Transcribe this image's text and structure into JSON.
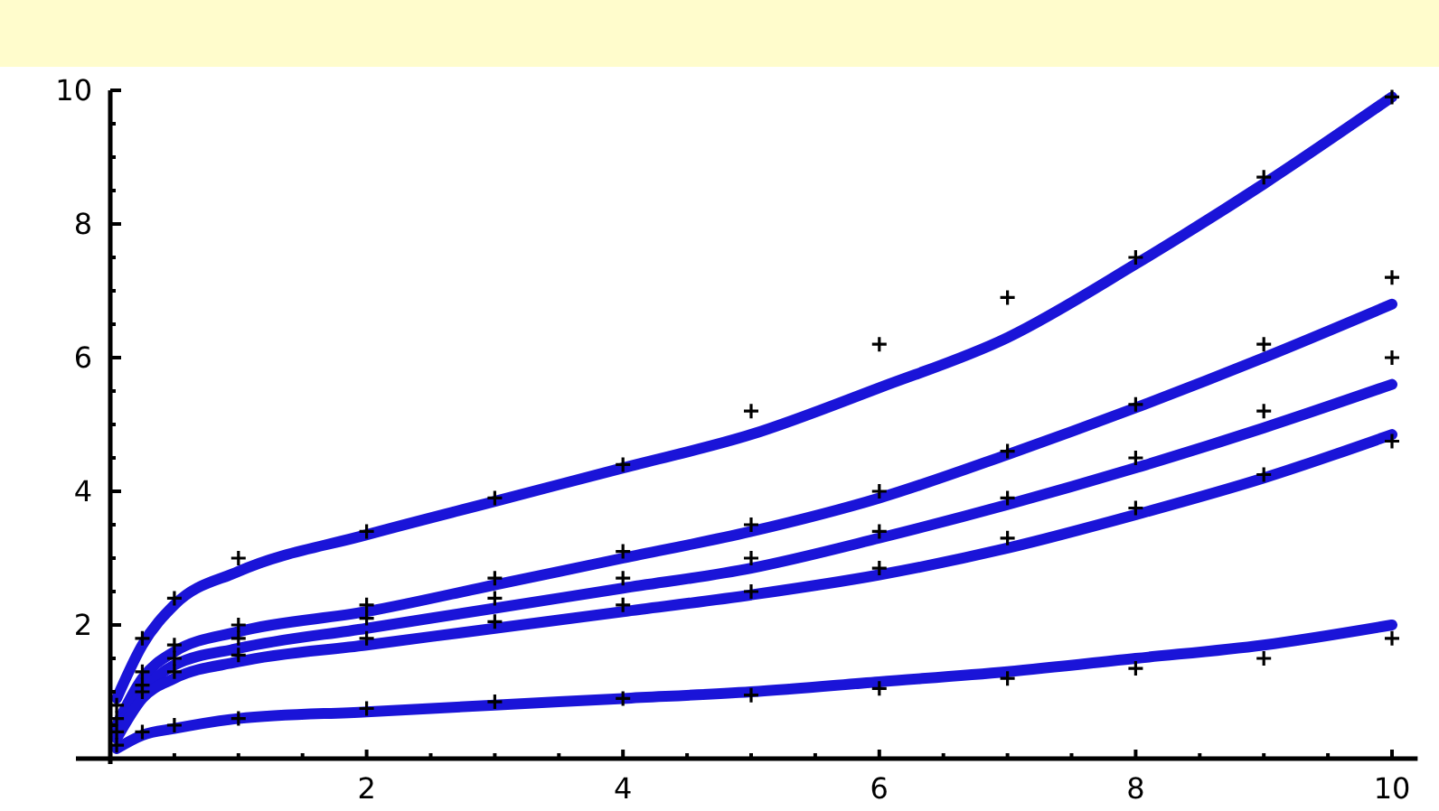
{
  "chart_data": {
    "type": "scatter",
    "xlim": [
      0,
      10.2
    ],
    "ylim": [
      0,
      10
    ],
    "xticks": [
      {
        "value": 0.5,
        "label": null
      },
      {
        "value": 1,
        "label": null
      },
      {
        "value": 1.5,
        "label": null
      },
      2,
      {
        "value": 2.5,
        "label": null
      },
      {
        "value": 3,
        "label": null
      },
      {
        "value": 3.5,
        "label": null
      },
      4,
      {
        "value": 4.5,
        "label": null
      },
      {
        "value": 5,
        "label": null
      },
      {
        "value": 5.5,
        "label": null
      },
      6,
      {
        "value": 6.5,
        "label": null
      },
      {
        "value": 7,
        "label": null
      },
      {
        "value": 7.5,
        "label": null
      },
      8,
      {
        "value": 8.5,
        "label": null
      },
      {
        "value": 9,
        "label": null
      },
      {
        "value": 9.5,
        "label": null
      },
      10
    ],
    "yticks": [
      {
        "value": 0.5,
        "label": null
      },
      {
        "value": 1,
        "label": null
      },
      {
        "value": 1.5,
        "label": null
      },
      2,
      {
        "value": 2.5,
        "label": null
      },
      {
        "value": 3,
        "label": null
      },
      {
        "value": 3.5,
        "label": null
      },
      4,
      {
        "value": 4.5,
        "label": null
      },
      {
        "value": 5,
        "label": null
      },
      {
        "value": 5.5,
        "label": null
      },
      6,
      {
        "value": 6.5,
        "label": null
      },
      {
        "value": 7,
        "label": null
      },
      {
        "value": 7.5,
        "label": null
      },
      8,
      {
        "value": 8.5,
        "label": null
      },
      {
        "value": 9,
        "label": null
      },
      {
        "value": 9.5,
        "label": null
      },
      10
    ],
    "x": [
      0.05,
      0.25,
      0.5,
      1,
      2,
      3,
      4,
      5,
      6,
      7,
      8,
      9,
      10
    ],
    "series": [
      {
        "marker": "cross",
        "color": "#000000",
        "values": [
          0.8,
          1.8,
          2.4,
          3.0,
          3.4,
          3.9,
          4.4,
          5.2,
          6.2,
          6.9,
          7.5,
          8.7,
          9.9
        ]
      },
      {
        "marker": "cross",
        "color": "#000000",
        "values": [
          0.6,
          1.3,
          1.7,
          2.0,
          2.3,
          2.7,
          3.1,
          3.5,
          4.0,
          4.6,
          5.3,
          6.2,
          7.2
        ]
      },
      {
        "marker": "cross",
        "color": "#000000",
        "values": [
          null,
          1.1,
          1.5,
          1.8,
          2.1,
          2.4,
          2.7,
          3.0,
          3.4,
          3.9,
          4.5,
          5.2,
          6.0
        ]
      },
      {
        "marker": "cross",
        "color": "#000000",
        "values": [
          0.4,
          1.0,
          1.3,
          1.55,
          1.8,
          2.05,
          2.3,
          2.5,
          2.85,
          3.3,
          3.75,
          4.25,
          4.75
        ]
      },
      {
        "marker": "cross",
        "color": "#000000",
        "values": [
          0.2,
          0.4,
          0.5,
          0.6,
          0.75,
          0.85,
          0.9,
          0.95,
          1.05,
          1.2,
          1.35,
          1.5,
          1.8
        ]
      },
      {
        "type": "line",
        "marker": "none",
        "color": "#1a14d8",
        "values": [
          0.9,
          1.7,
          2.3,
          2.8,
          3.35,
          3.85,
          4.35,
          4.85,
          5.55,
          6.3,
          7.4,
          8.6,
          9.9
        ]
      },
      {
        "type": "line",
        "marker": "none",
        "color": "#1a14d8",
        "values": [
          0.5,
          1.2,
          1.6,
          1.9,
          2.2,
          2.6,
          3.0,
          3.4,
          3.9,
          4.55,
          5.25,
          6.0,
          6.8
        ]
      },
      {
        "type": "line",
        "marker": "none",
        "color": "#1a14d8",
        "values": [
          0.4,
          1.0,
          1.4,
          1.65,
          1.95,
          2.25,
          2.55,
          2.85,
          3.3,
          3.8,
          4.35,
          4.95,
          5.6
        ]
      },
      {
        "type": "line",
        "marker": "none",
        "color": "#1a14d8",
        "values": [
          0.3,
          0.9,
          1.2,
          1.45,
          1.7,
          1.95,
          2.2,
          2.45,
          2.75,
          3.15,
          3.65,
          4.2,
          4.85
        ]
      },
      {
        "type": "line",
        "marker": "none",
        "color": "#1a14d8",
        "values": [
          0.15,
          0.35,
          0.45,
          0.6,
          0.7,
          0.8,
          0.9,
          1.0,
          1.15,
          1.3,
          1.5,
          1.7,
          2.0
        ]
      }
    ]
  }
}
